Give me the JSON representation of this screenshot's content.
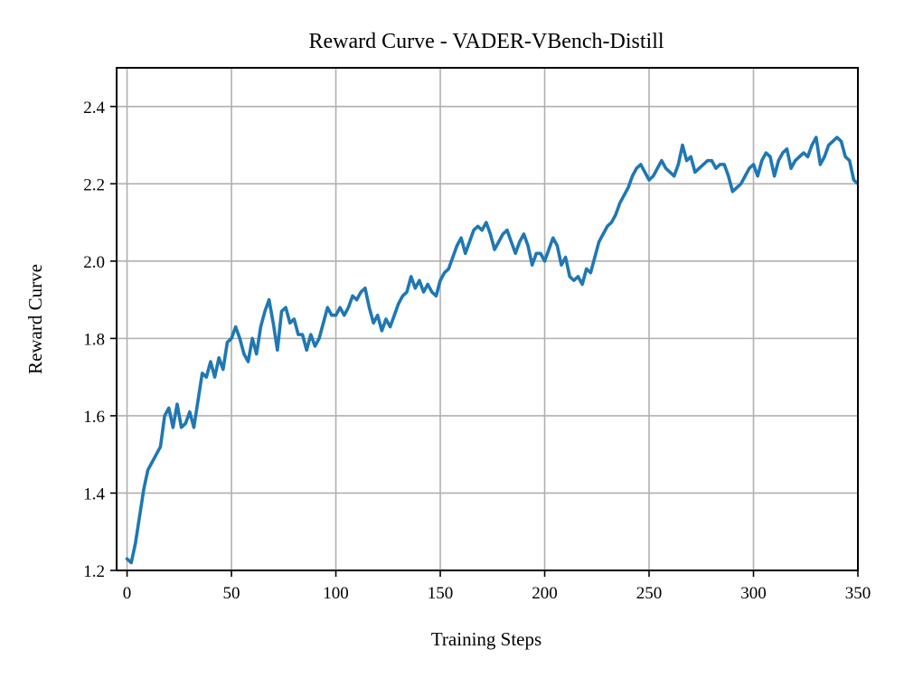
{
  "chart_data": {
    "type": "line",
    "title": "Reward Curve - VADER-VBench-Distill",
    "xlabel": "Training Steps",
    "ylabel": "Reward Curve",
    "xlim": [
      -5,
      350
    ],
    "ylim": [
      1.2,
      2.5
    ],
    "xticks": [
      0,
      50,
      100,
      150,
      200,
      250,
      300,
      350
    ],
    "yticks": [
      1.2,
      1.4,
      1.6,
      1.8,
      2.0,
      2.2,
      2.4
    ],
    "ytick_labels": [
      "1.2",
      "1.4",
      "1.6",
      "1.8",
      "2.0",
      "2.2",
      "2.4"
    ],
    "grid": true,
    "series": [
      {
        "color": "#1f77b4",
        "points": [
          [
            0,
            1.23
          ],
          [
            2,
            1.22
          ],
          [
            4,
            1.27
          ],
          [
            6,
            1.34
          ],
          [
            8,
            1.41
          ],
          [
            10,
            1.46
          ],
          [
            12,
            1.48
          ],
          [
            14,
            1.5
          ],
          [
            16,
            1.52
          ],
          [
            18,
            1.6
          ],
          [
            20,
            1.62
          ],
          [
            22,
            1.57
          ],
          [
            24,
            1.63
          ],
          [
            26,
            1.57
          ],
          [
            28,
            1.58
          ],
          [
            30,
            1.61
          ],
          [
            32,
            1.57
          ],
          [
            34,
            1.64
          ],
          [
            36,
            1.71
          ],
          [
            38,
            1.7
          ],
          [
            40,
            1.74
          ],
          [
            42,
            1.7
          ],
          [
            44,
            1.75
          ],
          [
            46,
            1.72
          ],
          [
            48,
            1.79
          ],
          [
            50,
            1.8
          ],
          [
            52,
            1.83
          ],
          [
            54,
            1.8
          ],
          [
            56,
            1.76
          ],
          [
            58,
            1.74
          ],
          [
            60,
            1.8
          ],
          [
            62,
            1.76
          ],
          [
            64,
            1.83
          ],
          [
            66,
            1.87
          ],
          [
            68,
            1.9
          ],
          [
            70,
            1.84
          ],
          [
            72,
            1.77
          ],
          [
            74,
            1.87
          ],
          [
            76,
            1.88
          ],
          [
            78,
            1.84
          ],
          [
            80,
            1.85
          ],
          [
            82,
            1.81
          ],
          [
            84,
            1.81
          ],
          [
            86,
            1.77
          ],
          [
            88,
            1.81
          ],
          [
            90,
            1.78
          ],
          [
            92,
            1.8
          ],
          [
            94,
            1.84
          ],
          [
            96,
            1.88
          ],
          [
            98,
            1.86
          ],
          [
            100,
            1.86
          ],
          [
            102,
            1.88
          ],
          [
            104,
            1.86
          ],
          [
            106,
            1.88
          ],
          [
            108,
            1.91
          ],
          [
            110,
            1.9
          ],
          [
            112,
            1.92
          ],
          [
            114,
            1.93
          ],
          [
            116,
            1.88
          ],
          [
            118,
            1.84
          ],
          [
            120,
            1.86
          ],
          [
            122,
            1.82
          ],
          [
            124,
            1.85
          ],
          [
            126,
            1.83
          ],
          [
            128,
            1.86
          ],
          [
            130,
            1.89
          ],
          [
            132,
            1.91
          ],
          [
            134,
            1.92
          ],
          [
            136,
            1.96
          ],
          [
            138,
            1.93
          ],
          [
            140,
            1.95
          ],
          [
            142,
            1.92
          ],
          [
            144,
            1.94
          ],
          [
            146,
            1.92
          ],
          [
            148,
            1.91
          ],
          [
            150,
            1.95
          ],
          [
            152,
            1.97
          ],
          [
            154,
            1.98
          ],
          [
            156,
            2.01
          ],
          [
            158,
            2.04
          ],
          [
            160,
            2.06
          ],
          [
            162,
            2.02
          ],
          [
            164,
            2.05
          ],
          [
            166,
            2.08
          ],
          [
            168,
            2.09
          ],
          [
            170,
            2.08
          ],
          [
            172,
            2.1
          ],
          [
            174,
            2.07
          ],
          [
            176,
            2.03
          ],
          [
            178,
            2.05
          ],
          [
            180,
            2.07
          ],
          [
            182,
            2.08
          ],
          [
            184,
            2.05
          ],
          [
            186,
            2.02
          ],
          [
            188,
            2.05
          ],
          [
            190,
            2.07
          ],
          [
            192,
            2.04
          ],
          [
            194,
            1.99
          ],
          [
            196,
            2.02
          ],
          [
            198,
            2.02
          ],
          [
            200,
            2.0
          ],
          [
            202,
            2.03
          ],
          [
            204,
            2.06
          ],
          [
            206,
            2.04
          ],
          [
            208,
            1.99
          ],
          [
            210,
            2.01
          ],
          [
            212,
            1.96
          ],
          [
            214,
            1.95
          ],
          [
            216,
            1.96
          ],
          [
            218,
            1.94
          ],
          [
            220,
            1.98
          ],
          [
            222,
            1.97
          ],
          [
            224,
            2.01
          ],
          [
            226,
            2.05
          ],
          [
            228,
            2.07
          ],
          [
            230,
            2.09
          ],
          [
            232,
            2.1
          ],
          [
            234,
            2.12
          ],
          [
            236,
            2.15
          ],
          [
            238,
            2.17
          ],
          [
            240,
            2.19
          ],
          [
            242,
            2.22
          ],
          [
            244,
            2.24
          ],
          [
            246,
            2.25
          ],
          [
            248,
            2.23
          ],
          [
            250,
            2.21
          ],
          [
            252,
            2.22
          ],
          [
            254,
            2.24
          ],
          [
            256,
            2.26
          ],
          [
            258,
            2.24
          ],
          [
            260,
            2.23
          ],
          [
            262,
            2.22
          ],
          [
            264,
            2.25
          ],
          [
            266,
            2.3
          ],
          [
            268,
            2.26
          ],
          [
            270,
            2.27
          ],
          [
            272,
            2.23
          ],
          [
            274,
            2.24
          ],
          [
            276,
            2.25
          ],
          [
            278,
            2.26
          ],
          [
            280,
            2.26
          ],
          [
            282,
            2.24
          ],
          [
            284,
            2.25
          ],
          [
            286,
            2.25
          ],
          [
            288,
            2.22
          ],
          [
            290,
            2.18
          ],
          [
            292,
            2.19
          ],
          [
            294,
            2.2
          ],
          [
            296,
            2.22
          ],
          [
            298,
            2.24
          ],
          [
            300,
            2.25
          ],
          [
            302,
            2.22
          ],
          [
            304,
            2.26
          ],
          [
            306,
            2.28
          ],
          [
            308,
            2.27
          ],
          [
            310,
            2.22
          ],
          [
            312,
            2.26
          ],
          [
            314,
            2.28
          ],
          [
            316,
            2.29
          ],
          [
            318,
            2.24
          ],
          [
            320,
            2.26
          ],
          [
            322,
            2.27
          ],
          [
            324,
            2.28
          ],
          [
            326,
            2.27
          ],
          [
            328,
            2.3
          ],
          [
            330,
            2.32
          ],
          [
            332,
            2.25
          ],
          [
            334,
            2.27
          ],
          [
            336,
            2.3
          ],
          [
            338,
            2.31
          ],
          [
            340,
            2.32
          ],
          [
            342,
            2.31
          ],
          [
            344,
            2.27
          ],
          [
            346,
            2.26
          ],
          [
            348,
            2.21
          ],
          [
            350,
            2.2
          ]
        ]
      }
    ]
  }
}
